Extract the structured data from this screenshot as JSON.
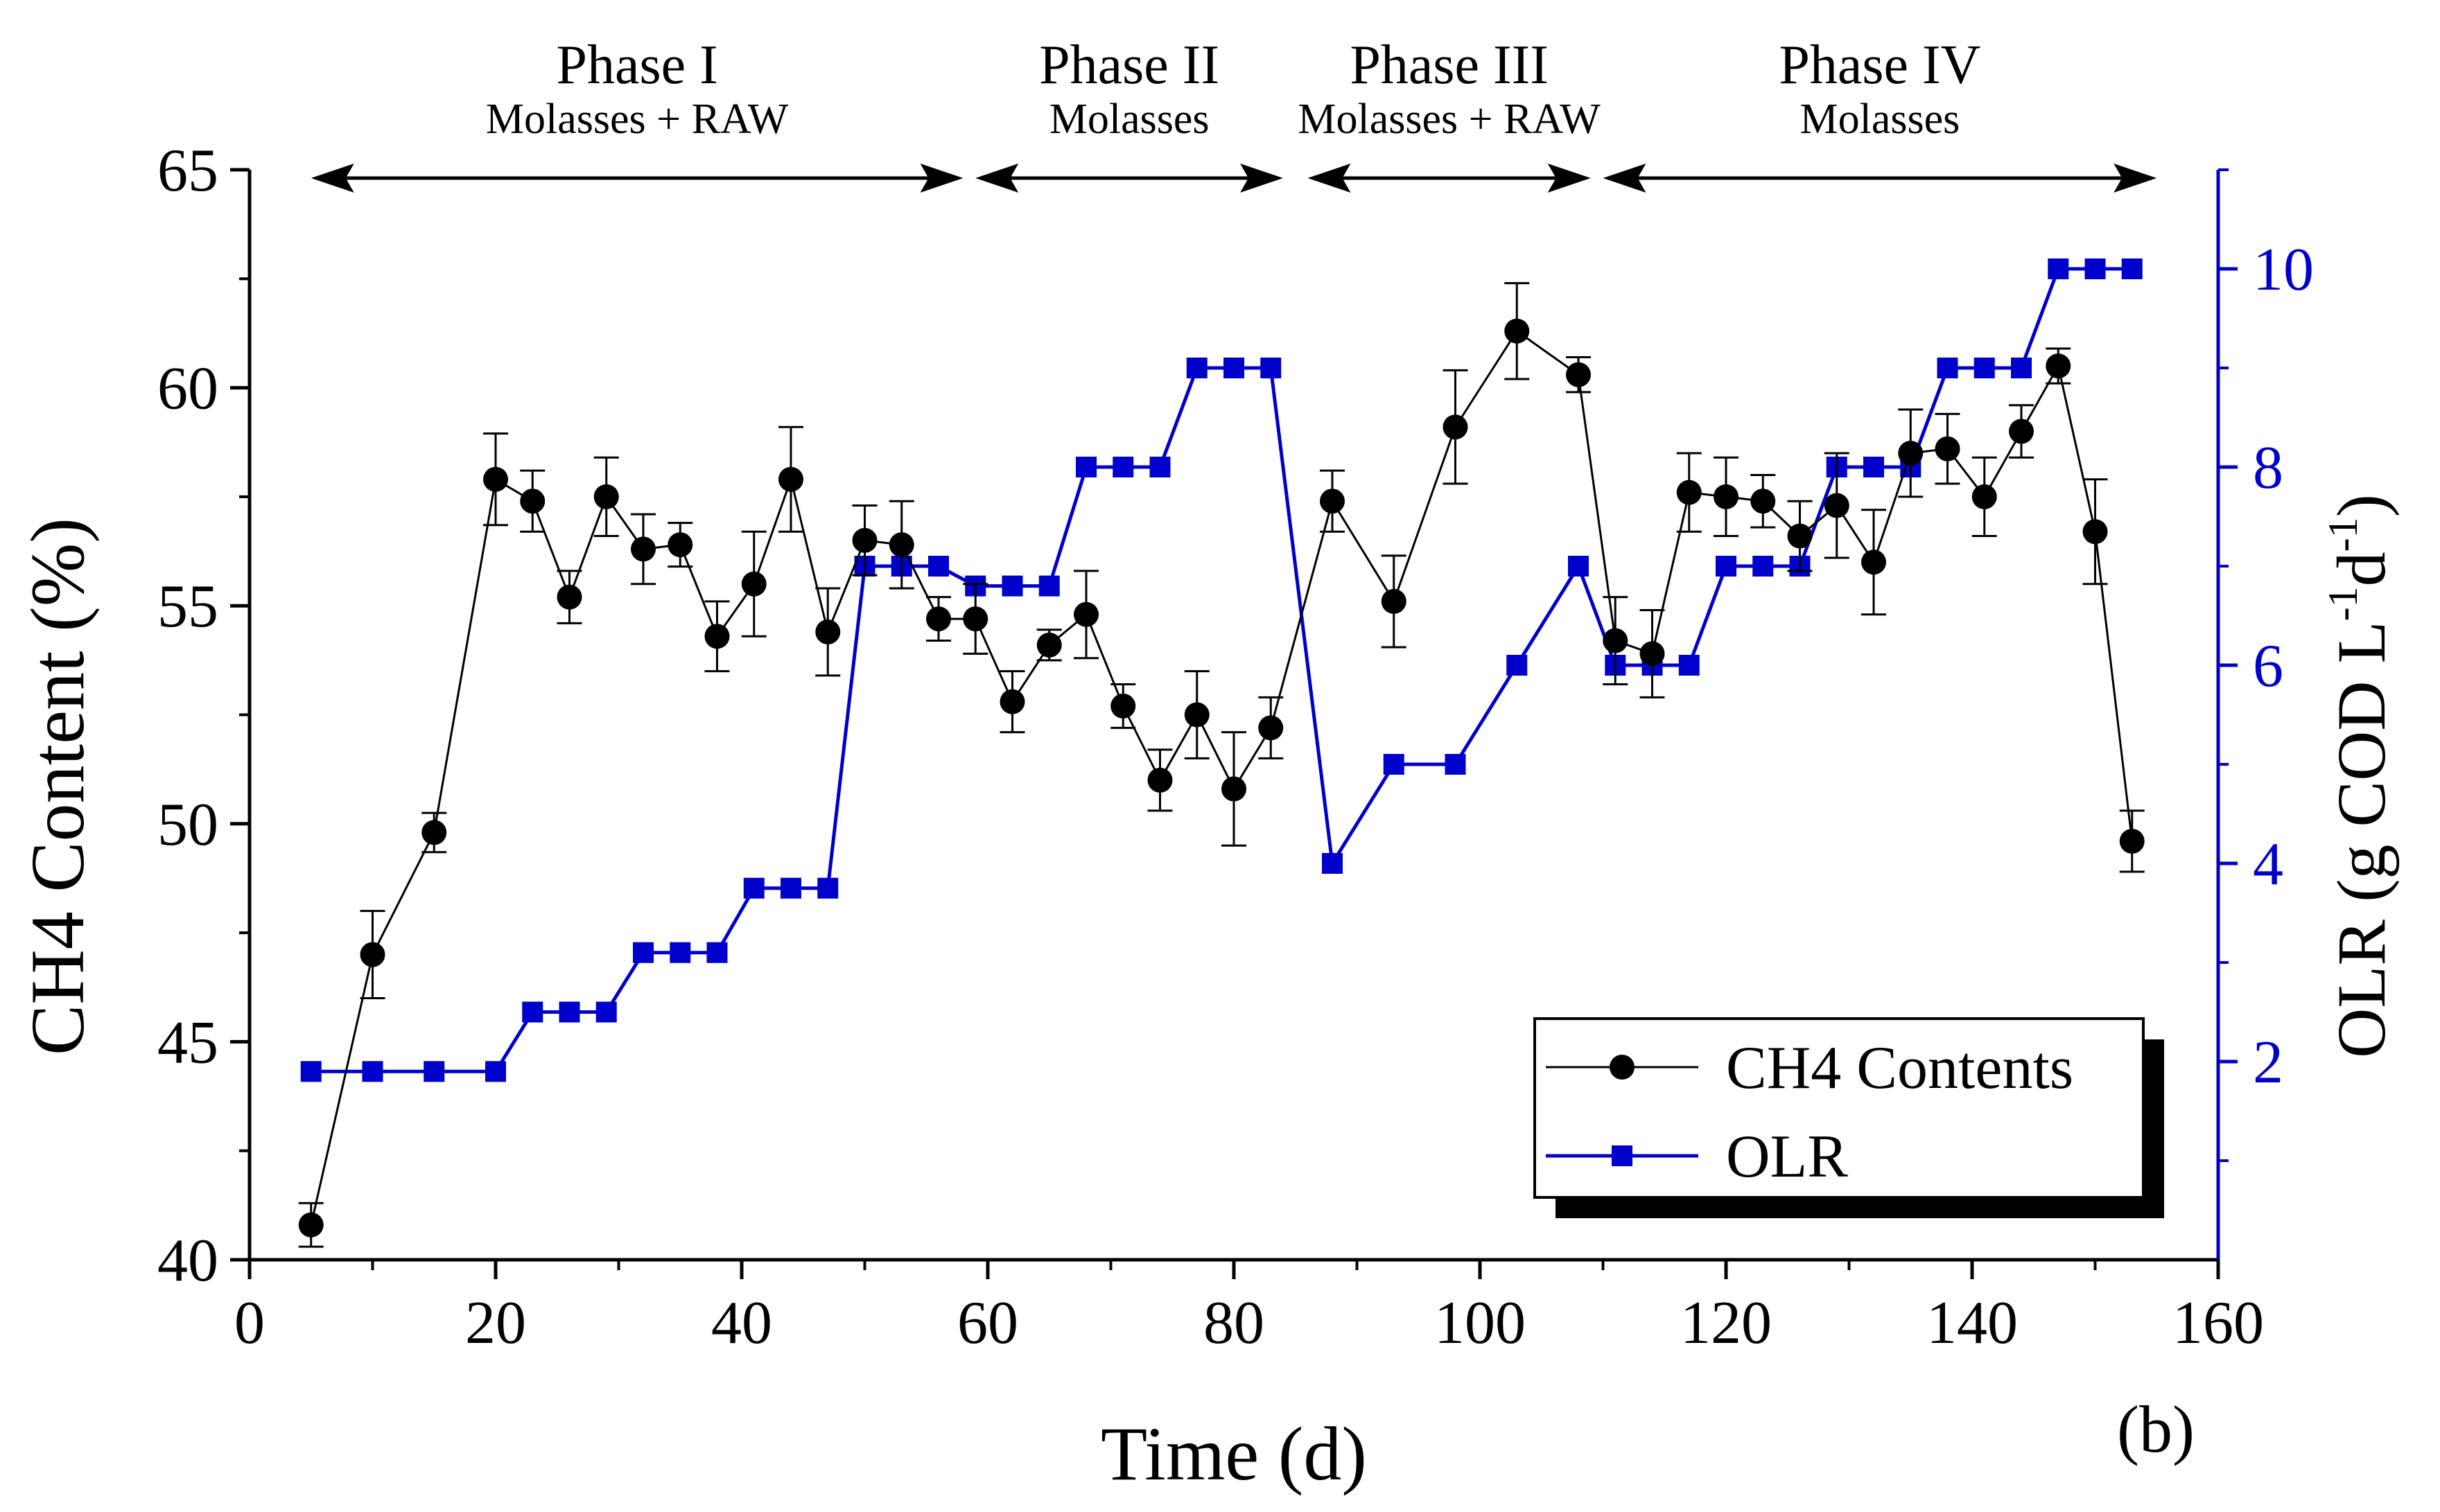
{
  "chart_data": {
    "type": "line",
    "label": "(b)",
    "xlabel": "Time (d)",
    "xlim": [
      0,
      160
    ],
    "xticks": [
      0,
      20,
      40,
      60,
      80,
      100,
      120,
      140,
      160
    ],
    "ylabel_left": "CH4 Content (%)",
    "ylim_left": [
      40,
      65
    ],
    "yticks_left": [
      40,
      45,
      50,
      55,
      60,
      65
    ],
    "ylabel_right": {
      "main": "OLR (g COD L",
      "sup1": "-1",
      "mid": "d",
      "sup2": "-1",
      "end": ")"
    },
    "ylim_right": [
      0,
      11
    ],
    "yticks_right": [
      2,
      4,
      6,
      8,
      10
    ],
    "phases": [
      {
        "name": "Phase I",
        "substrate": "Molasses + RAW",
        "start": 5,
        "end": 58
      },
      {
        "name": "Phase II",
        "substrate": "Molasses",
        "start": 59,
        "end": 84
      },
      {
        "name": "Phase III",
        "substrate": "Molasses + RAW",
        "start": 86,
        "end": 109
      },
      {
        "name": "Phase IV",
        "substrate": "Molasses",
        "start": 110,
        "end": 155
      }
    ],
    "series": [
      {
        "name": "CH4 Contents",
        "axis": "left",
        "color": "#000000",
        "marker": "circle",
        "x": [
          5,
          10,
          15,
          20,
          23,
          26,
          29,
          32,
          35,
          38,
          41,
          44,
          47,
          50,
          53,
          56,
          59,
          62,
          65,
          68,
          71,
          74,
          77,
          80,
          83,
          88,
          93,
          98,
          103,
          108,
          111,
          114,
          117,
          120,
          123,
          126,
          129,
          132,
          135,
          138,
          141,
          144,
          147,
          150,
          153
        ],
        "y": [
          40.8,
          47.0,
          49.8,
          57.9,
          57.4,
          55.2,
          57.5,
          56.3,
          56.4,
          54.3,
          55.5,
          57.9,
          54.4,
          56.5,
          56.4,
          54.7,
          54.7,
          52.8,
          54.1,
          54.8,
          52.7,
          51.0,
          52.5,
          50.8,
          52.2,
          57.4,
          55.1,
          59.1,
          61.3,
          60.3,
          54.2,
          53.9,
          57.6,
          57.5,
          57.4,
          56.6,
          57.3,
          56.0,
          58.5,
          58.6,
          57.5,
          59.0,
          60.5,
          56.7,
          49.6
        ],
        "error": [
          0.5,
          1.0,
          0.45,
          1.05,
          0.7,
          0.6,
          0.9,
          0.8,
          0.5,
          0.8,
          1.2,
          1.2,
          1.0,
          0.8,
          1.0,
          0.5,
          0.8,
          0.7,
          0.35,
          1.0,
          0.5,
          0.7,
          1.0,
          1.3,
          0.7,
          0.7,
          1.05,
          1.3,
          1.1,
          0.4,
          1.0,
          1.0,
          0.9,
          0.9,
          0.6,
          0.8,
          1.2,
          1.2,
          1.0,
          0.8,
          0.9,
          0.6,
          0.4,
          1.2,
          0.7
        ]
      },
      {
        "name": "OLR",
        "axis": "right",
        "color": "#0000cc",
        "marker": "square",
        "x": [
          5,
          10,
          15,
          20,
          23,
          26,
          29,
          32,
          35,
          38,
          41,
          44,
          47,
          50,
          53,
          56,
          59,
          62,
          65,
          68,
          71,
          74,
          77,
          80,
          83,
          88,
          93,
          98,
          103,
          108,
          111,
          114,
          117,
          120,
          123,
          126,
          129,
          132,
          135,
          138,
          141,
          144,
          147,
          150,
          153
        ],
        "y": [
          1.9,
          1.9,
          1.9,
          1.9,
          2.5,
          2.5,
          2.5,
          3.1,
          3.1,
          3.1,
          3.75,
          3.75,
          3.75,
          7.0,
          7.0,
          7.0,
          6.8,
          6.8,
          6.8,
          8.0,
          8.0,
          8.0,
          9.0,
          9.0,
          9.0,
          4.0,
          5.0,
          5.0,
          6.0,
          7.0,
          6.0,
          6.0,
          6.0,
          7.0,
          7.0,
          7.0,
          8.0,
          8.0,
          8.0,
          9.0,
          9.0,
          9.0,
          10.0,
          10.0,
          10.0
        ]
      }
    ]
  }
}
